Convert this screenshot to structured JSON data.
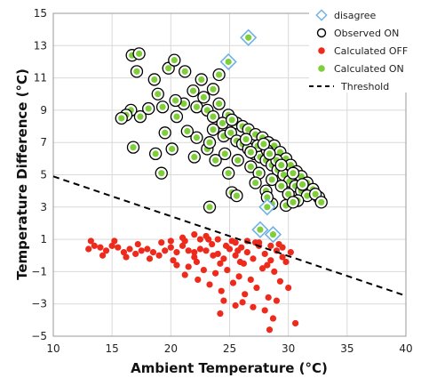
{
  "chart_data": {
    "type": "scatter",
    "xlabel": "Ambient Temperature (°C)",
    "ylabel": "Temperature Difference (°C)",
    "xlim": [
      10,
      40
    ],
    "ylim": [
      -5,
      15
    ],
    "xticks": [
      10,
      15,
      20,
      25,
      30,
      35,
      40
    ],
    "yticks": [
      -5,
      -3,
      -1,
      1,
      3,
      5,
      7,
      9,
      11,
      13,
      15
    ],
    "grid": "both",
    "legend_position": "top-right",
    "colors": {
      "disagree": "#6fb1e6",
      "observed_on": "#000000",
      "calculated_off": "#ee2a1c",
      "calculated_on": "#7fcf3a",
      "threshold": "#000000"
    },
    "legend": [
      {
        "key": "disagree",
        "label": "disagree"
      },
      {
        "key": "observed_on",
        "label": "Observed ON"
      },
      {
        "key": "calculated_off",
        "label": "Calculated OFF"
      },
      {
        "key": "calculated_on",
        "label": "Calculated ON"
      },
      {
        "key": "threshold",
        "label": "Threshold"
      }
    ],
    "threshold": {
      "x": [
        10,
        40
      ],
      "y": [
        4.9,
        -2.5
      ]
    },
    "series": [
      {
        "key": "calculated_off",
        "points": [
          [
            13.0,
            0.4
          ],
          [
            13.5,
            0.6
          ],
          [
            14.0,
            0.5
          ],
          [
            14.5,
            0.3
          ],
          [
            15.0,
            0.6
          ],
          [
            15.5,
            0.5
          ],
          [
            16.0,
            0.2
          ],
          [
            16.5,
            0.4
          ],
          [
            17.0,
            0.1
          ],
          [
            17.5,
            0.3
          ],
          [
            18.0,
            0.4
          ],
          [
            18.5,
            0.2
          ],
          [
            19.0,
            0.0
          ],
          [
            19.5,
            0.3
          ],
          [
            20.0,
            0.5
          ],
          [
            20.5,
            0.2
          ],
          [
            21.0,
            0.6
          ],
          [
            21.5,
            0.3
          ],
          [
            22.0,
            -0.1
          ],
          [
            22.5,
            0.4
          ],
          [
            23.0,
            0.3
          ],
          [
            23.5,
            0.7
          ],
          [
            24.0,
            0.1
          ],
          [
            24.5,
            -0.2
          ],
          [
            25.0,
            0.4
          ],
          [
            25.5,
            0.0
          ],
          [
            26.0,
            0.5
          ],
          [
            26.5,
            0.2
          ],
          [
            27.0,
            -0.2
          ],
          [
            27.5,
            0.6
          ],
          [
            28.0,
            0.1
          ],
          [
            28.5,
            -0.3
          ],
          [
            29.0,
            0.3
          ],
          [
            29.5,
            -0.1
          ],
          [
            13.2,
            0.9
          ],
          [
            14.2,
            0.0
          ],
          [
            15.2,
            0.9
          ],
          [
            16.2,
            -0.1
          ],
          [
            17.2,
            0.7
          ],
          [
            18.2,
            -0.2
          ],
          [
            19.2,
            0.8
          ],
          [
            20.2,
            -0.3
          ],
          [
            21.2,
            0.9
          ],
          [
            22.2,
            -0.4
          ],
          [
            23.2,
            1.0
          ],
          [
            24.2,
            -0.5
          ],
          [
            25.2,
            0.9
          ],
          [
            26.2,
            -0.5
          ],
          [
            27.2,
            0.8
          ],
          [
            28.2,
            -0.6
          ],
          [
            29.2,
            0.7
          ],
          [
            20.0,
            0.9
          ],
          [
            21.0,
            1.1
          ],
          [
            22.0,
            1.3
          ],
          [
            23.0,
            1.2
          ],
          [
            22.5,
            1.0
          ],
          [
            24.0,
            1.0
          ],
          [
            25.5,
            0.8
          ],
          [
            26.5,
            0.9
          ],
          [
            27.5,
            0.8
          ],
          [
            28.5,
            0.6
          ],
          [
            29.5,
            0.5
          ],
          [
            20.5,
            -0.6
          ],
          [
            21.5,
            -0.7
          ],
          [
            22.8,
            -0.9
          ],
          [
            23.8,
            -1.1
          ],
          [
            24.8,
            -0.9
          ],
          [
            25.8,
            -1.3
          ],
          [
            26.8,
            -1.5
          ],
          [
            27.8,
            -0.8
          ],
          [
            28.8,
            -1.0
          ],
          [
            21.2,
            -1.2
          ],
          [
            22.3,
            -1.5
          ],
          [
            23.3,
            -1.8
          ],
          [
            24.3,
            -2.2
          ],
          [
            25.3,
            -1.7
          ],
          [
            26.3,
            -2.4
          ],
          [
            27.3,
            -2.0
          ],
          [
            28.3,
            -2.6
          ],
          [
            29.3,
            -1.6
          ],
          [
            24.5,
            -2.8
          ],
          [
            25.5,
            -3.1
          ],
          [
            27.0,
            -3.2
          ],
          [
            28.0,
            -3.4
          ],
          [
            29.0,
            -2.8
          ],
          [
            30.0,
            -2.0
          ],
          [
            29.8,
            -0.4
          ],
          [
            30.2,
            0.2
          ],
          [
            28.7,
            -3.9
          ],
          [
            28.4,
            -4.6
          ],
          [
            30.6,
            -4.2
          ],
          [
            24.2,
            -3.6
          ],
          [
            25.9,
            -0.4
          ],
          [
            26.1,
            -2.9
          ],
          [
            22.0,
            0.2
          ],
          [
            23.6,
            0.0
          ],
          [
            24.7,
            0.6
          ],
          [
            25.7,
            0.3
          ]
        ]
      },
      {
        "key": "calculated_on",
        "observed": true,
        "points": [
          [
            16.7,
            12.4
          ],
          [
            17.3,
            12.5
          ],
          [
            17.1,
            11.4
          ],
          [
            18.6,
            10.9
          ],
          [
            19.8,
            11.6
          ],
          [
            20.3,
            12.1
          ],
          [
            21.2,
            11.4
          ],
          [
            22.6,
            10.9
          ],
          [
            23.6,
            10.3
          ],
          [
            24.1,
            11.2
          ],
          [
            22.8,
            9.8
          ],
          [
            21.1,
            9.4
          ],
          [
            20.4,
            9.6
          ],
          [
            19.3,
            9.2
          ],
          [
            18.9,
            10.0
          ],
          [
            16.6,
            9.0
          ],
          [
            16.2,
            8.7
          ],
          [
            15.8,
            8.5
          ],
          [
            17.4,
            8.6
          ],
          [
            18.1,
            9.1
          ],
          [
            21.9,
            10.2
          ],
          [
            22.2,
            9.2
          ],
          [
            23.1,
            9.0
          ],
          [
            23.6,
            8.6
          ],
          [
            24.1,
            9.4
          ],
          [
            24.9,
            8.7
          ],
          [
            25.6,
            8.2
          ],
          [
            26.1,
            8.0
          ],
          [
            26.6,
            7.8
          ],
          [
            27.2,
            7.5
          ],
          [
            27.8,
            7.3
          ],
          [
            28.3,
            7.0
          ],
          [
            28.8,
            6.8
          ],
          [
            29.3,
            6.4
          ],
          [
            29.8,
            6.0
          ],
          [
            30.2,
            5.6
          ],
          [
            30.7,
            5.2
          ],
          [
            31.1,
            4.9
          ],
          [
            31.6,
            4.5
          ],
          [
            32.1,
            4.1
          ],
          [
            32.6,
            3.6
          ],
          [
            24.5,
            7.4
          ],
          [
            25.1,
            7.6
          ],
          [
            25.6,
            7.1
          ],
          [
            26.1,
            6.9
          ],
          [
            26.6,
            6.6
          ],
          [
            27.1,
            6.3
          ],
          [
            27.6,
            6.1
          ],
          [
            28.1,
            5.9
          ],
          [
            28.6,
            5.6
          ],
          [
            29.1,
            5.3
          ],
          [
            29.6,
            5.0
          ],
          [
            30.1,
            4.6
          ],
          [
            30.6,
            4.3
          ],
          [
            31.1,
            4.0
          ],
          [
            31.6,
            3.7
          ],
          [
            24.4,
            8.2
          ],
          [
            25.2,
            8.4
          ],
          [
            26.4,
            7.2
          ],
          [
            27.4,
            6.8
          ],
          [
            28.2,
            6.5
          ],
          [
            29.0,
            5.9
          ],
          [
            23.6,
            7.8
          ],
          [
            23.1,
            6.6
          ],
          [
            22.2,
            7.3
          ],
          [
            21.4,
            7.7
          ],
          [
            19.5,
            7.6
          ],
          [
            20.5,
            8.6
          ],
          [
            23.3,
            7.0
          ],
          [
            24.6,
            6.3
          ],
          [
            25.7,
            5.9
          ],
          [
            26.8,
            5.5
          ],
          [
            27.5,
            5.1
          ],
          [
            28.6,
            4.7
          ],
          [
            29.4,
            4.3
          ],
          [
            30.0,
            3.8
          ],
          [
            30.8,
            3.4
          ],
          [
            27.2,
            4.5
          ],
          [
            28.1,
            4.0
          ],
          [
            28.6,
            3.2
          ],
          [
            28.2,
            3.6
          ],
          [
            29.8,
            3.1
          ],
          [
            30.4,
            3.3
          ],
          [
            23.8,
            5.9
          ],
          [
            24.9,
            5.1
          ],
          [
            25.2,
            3.9
          ],
          [
            25.6,
            3.7
          ],
          [
            16.8,
            6.7
          ],
          [
            19.2,
            5.1
          ],
          [
            18.7,
            6.3
          ],
          [
            20.1,
            6.6
          ],
          [
            22.0,
            6.1
          ],
          [
            23.3,
            3.0
          ],
          [
            26.8,
            6.4
          ],
          [
            27.9,
            6.9
          ],
          [
            28.4,
            6.3
          ],
          [
            29.4,
            5.6
          ],
          [
            30.4,
            5.1
          ],
          [
            31.2,
            4.4
          ],
          [
            32.3,
            3.8
          ],
          [
            32.8,
            3.3
          ]
        ]
      },
      {
        "key": "disagree_on",
        "points": [
          [
            26.6,
            13.5
          ],
          [
            24.9,
            12.0
          ],
          [
            28.2,
            3.0
          ],
          [
            27.6,
            1.6
          ],
          [
            28.7,
            1.3
          ]
        ]
      }
    ]
  }
}
